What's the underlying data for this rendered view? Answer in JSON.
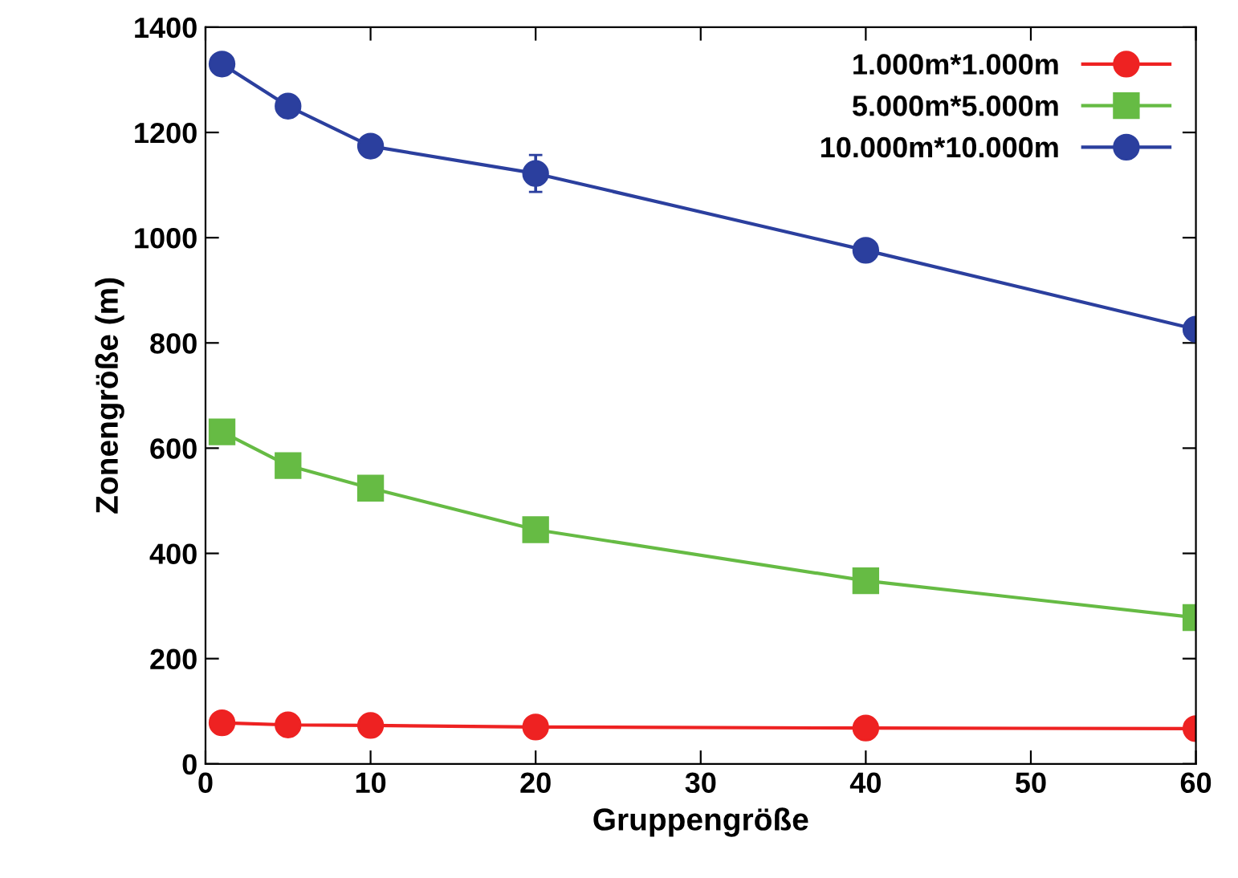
{
  "chart_data": {
    "type": "line",
    "xlabel": "Gruppengröße",
    "ylabel": "Zonengröße (m)",
    "x": [
      1,
      5,
      10,
      20,
      40,
      60
    ],
    "series": [
      {
        "name": "1.000m*1.000m",
        "color": "#ee2222",
        "marker": "circle",
        "values": [
          78,
          74,
          73,
          70,
          68,
          67
        ]
      },
      {
        "name": "5.000m*5.000m",
        "color": "#66bb44",
        "marker": "square",
        "values": [
          631,
          567,
          524,
          445,
          348,
          278
        ]
      },
      {
        "name": "10.000m*10.000m",
        "color": "#2b3f9e",
        "marker": "circle",
        "values": [
          1330,
          1250,
          1174,
          1122,
          976,
          826
        ],
        "errors": [
          15,
          18,
          15,
          35,
          12,
          15
        ]
      }
    ],
    "xlim": [
      0,
      60
    ],
    "xticks": [
      0,
      10,
      20,
      30,
      40,
      50,
      60
    ],
    "ylim": [
      0,
      1400
    ],
    "yticks": [
      0,
      200,
      400,
      600,
      800,
      1000,
      1200,
      1400
    ],
    "grid": false,
    "legend": "top right",
    "line_style": "solid"
  }
}
